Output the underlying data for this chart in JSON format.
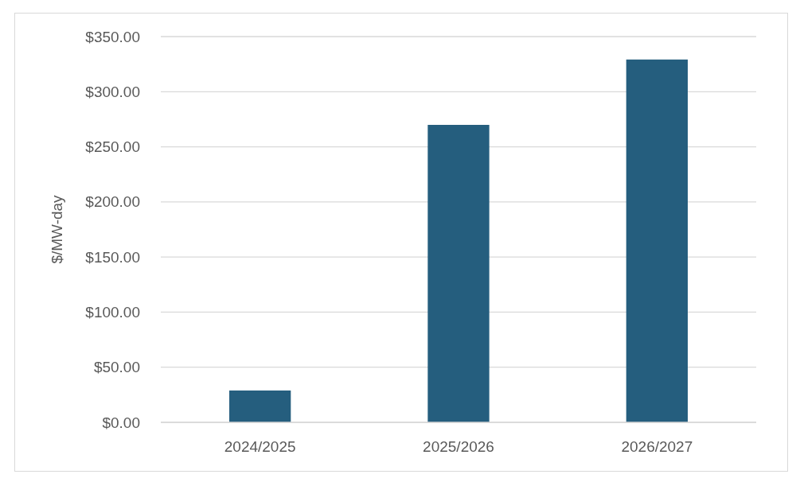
{
  "chart_data": {
    "type": "bar",
    "ylabel": "$/MW-day",
    "categories": [
      "2024/2025",
      "2025/2026",
      "2026/2027"
    ],
    "values": [
      28.9,
      269.9,
      329.2
    ],
    "color": "#255e7e",
    "ylim": [
      0,
      350
    ],
    "yticks": [
      {
        "value": 0,
        "label": "$0.00"
      },
      {
        "value": 50,
        "label": "$50.00"
      },
      {
        "value": 100,
        "label": "$100.00"
      },
      {
        "value": 150,
        "label": "$150.00"
      },
      {
        "value": 200,
        "label": "$200.00"
      },
      {
        "value": 250,
        "label": "$250.00"
      },
      {
        "value": 300,
        "label": "$300.00"
      },
      {
        "value": 350,
        "label": "$350.00"
      }
    ],
    "grid": "y"
  }
}
